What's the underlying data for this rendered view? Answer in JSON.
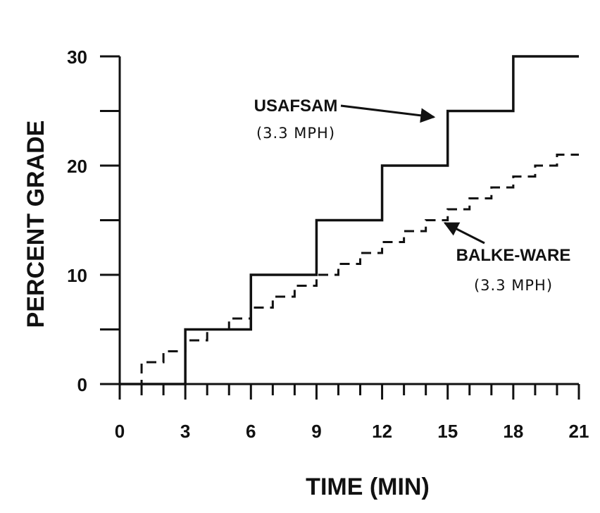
{
  "chart_data": {
    "type": "line",
    "xlabel": "TIME (MIN)",
    "ylabel": "PERCENT GRADE",
    "xlim": [
      0,
      21
    ],
    "ylim": [
      0,
      30
    ],
    "x_ticks": [
      0,
      3,
      6,
      9,
      12,
      15,
      18,
      21
    ],
    "x_minor_step": 1,
    "y_ticks": [
      0,
      10,
      20,
      30
    ],
    "y_minor_step": 5,
    "grid": false,
    "series": [
      {
        "id": "usafsam",
        "style": "solid step",
        "x": [
          0,
          3,
          3,
          6,
          6,
          9,
          9,
          12,
          12,
          15,
          15,
          18,
          18,
          21
        ],
        "y": [
          0,
          0,
          5,
          5,
          10,
          10,
          15,
          15,
          20,
          20,
          25,
          25,
          30,
          30
        ]
      },
      {
        "id": "balke_ware",
        "style": "dashed step",
        "x": [
          0,
          1,
          1,
          2,
          2,
          3,
          3,
          4,
          4,
          5,
          5,
          6,
          6,
          7,
          7,
          8,
          8,
          9,
          9,
          10,
          10,
          11,
          11,
          12,
          12,
          13,
          13,
          14,
          14,
          15,
          15,
          16,
          16,
          17,
          17,
          18,
          18,
          19,
          19,
          20,
          20,
          21
        ],
        "y": [
          0,
          0,
          2,
          2,
          3,
          3,
          4,
          4,
          5,
          5,
          6,
          6,
          7,
          7,
          8,
          8,
          9,
          9,
          10,
          10,
          11,
          11,
          12,
          12,
          13,
          13,
          14,
          14,
          15,
          15,
          16,
          16,
          17,
          17,
          18,
          18,
          19,
          19,
          20,
          20,
          21,
          21
        ]
      }
    ],
    "annotations": [
      {
        "id": "usafsam",
        "name": "USAFSAM",
        "sub": "(3.3 MPH)",
        "arrow_to": [
          14.5,
          24.7
        ]
      },
      {
        "id": "balke_ware",
        "name": "BALKE-WARE",
        "sub": "(3.3 MPH)",
        "arrow_to": [
          15.0,
          15.0
        ]
      }
    ]
  }
}
